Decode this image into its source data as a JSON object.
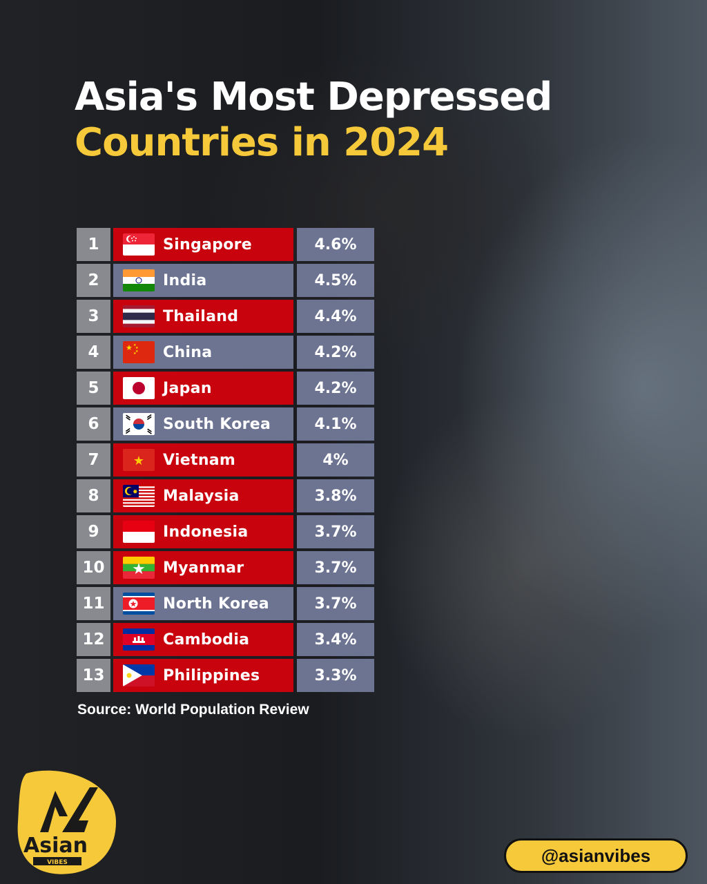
{
  "title": {
    "line1": "Asia's Most Depressed",
    "line2": "Countries in 2024"
  },
  "chart_data": {
    "type": "table",
    "title": "Asia's Most Depressed Countries in 2024",
    "rows": [
      {
        "rank": "1",
        "country": "Singapore",
        "value": "4.6%",
        "flag": "singapore-flag",
        "style": "red"
      },
      {
        "rank": "2",
        "country": "India",
        "value": "4.5%",
        "flag": "india-flag",
        "style": "blue"
      },
      {
        "rank": "3",
        "country": "Thailand",
        "value": "4.4%",
        "flag": "thailand-flag",
        "style": "red"
      },
      {
        "rank": "4",
        "country": "China",
        "value": "4.2%",
        "flag": "china-flag",
        "style": "blue"
      },
      {
        "rank": "5",
        "country": "Japan",
        "value": "4.2%",
        "flag": "japan-flag",
        "style": "red"
      },
      {
        "rank": "6",
        "country": "South Korea",
        "value": "4.1%",
        "flag": "south-korea-flag",
        "style": "blue"
      },
      {
        "rank": "7",
        "country": "Vietnam",
        "value": "4%",
        "flag": "vietnam-flag",
        "style": "red"
      },
      {
        "rank": "8",
        "country": "Malaysia",
        "value": "3.8%",
        "flag": "malaysia-flag",
        "style": "red"
      },
      {
        "rank": "9",
        "country": "Indonesia",
        "value": "3.7%",
        "flag": "indonesia-flag",
        "style": "red"
      },
      {
        "rank": "10",
        "country": "Myanmar",
        "value": "3.7%",
        "flag": "myanmar-flag",
        "style": "red"
      },
      {
        "rank": "11",
        "country": "North Korea",
        "value": "3.7%",
        "flag": "north-korea-flag",
        "style": "blue"
      },
      {
        "rank": "12",
        "country": "Cambodia",
        "value": "3.4%",
        "flag": "cambodia-flag",
        "style": "red"
      },
      {
        "rank": "13",
        "country": "Philippines",
        "value": "3.3%",
        "flag": "philippines-flag",
        "style": "red"
      }
    ]
  },
  "source": "Source: World Population Review",
  "logo": {
    "text": "Asian",
    "subtext": "VIBES",
    "icon": "asian-vibes-logo"
  },
  "handle": "@asianvibes",
  "colors": {
    "title_white": "#ffffff",
    "title_yellow": "#f6c93a",
    "row_red": "#c9030d",
    "row_blue": "#6d7491",
    "rank_gray": "#888a90"
  }
}
